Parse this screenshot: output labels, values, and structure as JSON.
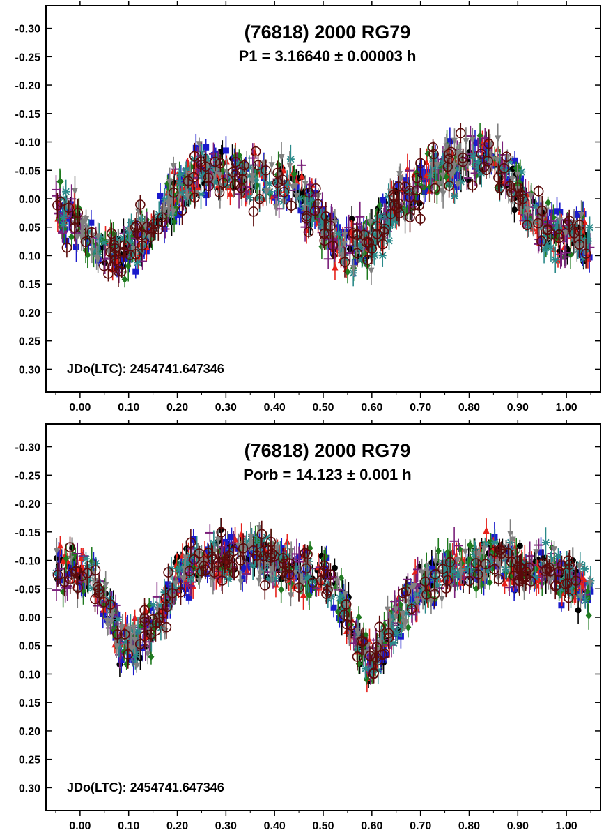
{
  "chart_data": [
    {
      "type": "scatter",
      "title": "(76818) 2000 RG79",
      "subtitle": "P1 = 3.16640 ± 0.00003 h",
      "annotation": "JDo(LTC): 2454741.647346",
      "xlabel": "",
      "ylabel": "",
      "xlim": [
        -0.07,
        1.07
      ],
      "ylim": [
        0.34,
        -0.34
      ],
      "y_inverted": true,
      "x_ticks": [
        0.0,
        0.1,
        0.2,
        0.3,
        0.4,
        0.5,
        0.6,
        0.7,
        0.8,
        0.9,
        1.0
      ],
      "x_tick_labels": [
        "0.00",
        "0.10",
        "0.20",
        "0.30",
        "0.40",
        "0.50",
        "0.60",
        "0.70",
        "0.80",
        "0.90",
        "1.00"
      ],
      "y_ticks": [
        -0.3,
        -0.25,
        -0.2,
        -0.15,
        -0.1,
        -0.05,
        0.0,
        0.05,
        0.1,
        0.15,
        0.2,
        0.25,
        0.3
      ],
      "y_tick_labels": [
        "-0.30",
        "-0.25",
        "-0.20",
        "-0.15",
        "-0.10",
        "-0.05",
        "0.00",
        "0.05",
        "0.10",
        "0.15",
        "0.20",
        "0.25",
        "0.30"
      ],
      "grid": false,
      "series_colors": [
        "#000000",
        "#1a1acc",
        "#e6201a",
        "#1f7a1f",
        "#7a1f7a",
        "#2a8a8a",
        "#808080",
        "#5a0a0a"
      ],
      "curve": {
        "phase": [
          -0.05,
          0.0,
          0.05,
          0.1,
          0.15,
          0.2,
          0.25,
          0.3,
          0.35,
          0.4,
          0.45,
          0.5,
          0.55,
          0.6,
          0.65,
          0.7,
          0.75,
          0.8,
          0.85,
          0.9,
          0.95,
          1.0,
          1.05
        ],
        "mag": [
          0.02,
          0.05,
          0.1,
          0.09,
          0.05,
          -0.01,
          -0.05,
          -0.05,
          -0.03,
          -0.03,
          -0.02,
          0.05,
          0.09,
          0.07,
          0.01,
          -0.02,
          -0.05,
          -0.07,
          -0.07,
          -0.02,
          0.05,
          0.07,
          0.07
        ]
      },
      "scatter_half_width": 0.05,
      "points_per_series": 160
    },
    {
      "type": "scatter",
      "title": "(76818) 2000 RG79",
      "subtitle": "Porb = 14.123 ± 0.001 h",
      "annotation": "JDo(LTC): 2454741.647346",
      "xlabel": "",
      "ylabel": "",
      "xlim": [
        -0.07,
        1.07
      ],
      "ylim": [
        0.34,
        -0.34
      ],
      "y_inverted": true,
      "x_ticks": [
        0.0,
        0.1,
        0.2,
        0.3,
        0.4,
        0.5,
        0.6,
        0.7,
        0.8,
        0.9,
        1.0
      ],
      "x_tick_labels": [
        "0.00",
        "0.10",
        "0.20",
        "0.30",
        "0.40",
        "0.50",
        "0.60",
        "0.70",
        "0.80",
        "0.90",
        "1.00"
      ],
      "y_ticks": [
        -0.3,
        -0.25,
        -0.2,
        -0.15,
        -0.1,
        -0.05,
        0.0,
        0.05,
        0.1,
        0.15,
        0.2,
        0.25,
        0.3
      ],
      "y_tick_labels": [
        "-0.30",
        "-0.25",
        "-0.20",
        "-0.15",
        "-0.10",
        "-0.05",
        "0.00",
        "0.05",
        "0.10",
        "0.15",
        "0.20",
        "0.25",
        "0.30"
      ],
      "grid": false,
      "series_colors": [
        "#000000",
        "#1a1acc",
        "#e6201a",
        "#1f7a1f",
        "#7a1f7a",
        "#2a8a8a",
        "#808080",
        "#5a0a0a"
      ],
      "curve": {
        "phase": [
          -0.05,
          0.0,
          0.03,
          0.06,
          0.08,
          0.1,
          0.12,
          0.15,
          0.18,
          0.2,
          0.25,
          0.3,
          0.35,
          0.4,
          0.45,
          0.5,
          0.53,
          0.55,
          0.58,
          0.6,
          0.62,
          0.65,
          0.7,
          0.75,
          0.8,
          0.85,
          0.9,
          0.95,
          1.0,
          1.05
        ],
        "mag": [
          -0.08,
          -0.08,
          -0.07,
          -0.02,
          0.03,
          0.05,
          0.04,
          0.02,
          -0.03,
          -0.08,
          -0.1,
          -0.1,
          -0.11,
          -0.1,
          -0.08,
          -0.08,
          -0.05,
          0.0,
          0.06,
          0.08,
          0.05,
          0.0,
          -0.05,
          -0.08,
          -0.09,
          -0.1,
          -0.09,
          -0.09,
          -0.07,
          -0.04
        ]
      },
      "scatter_half_width": 0.045,
      "points_per_series": 160
    }
  ]
}
